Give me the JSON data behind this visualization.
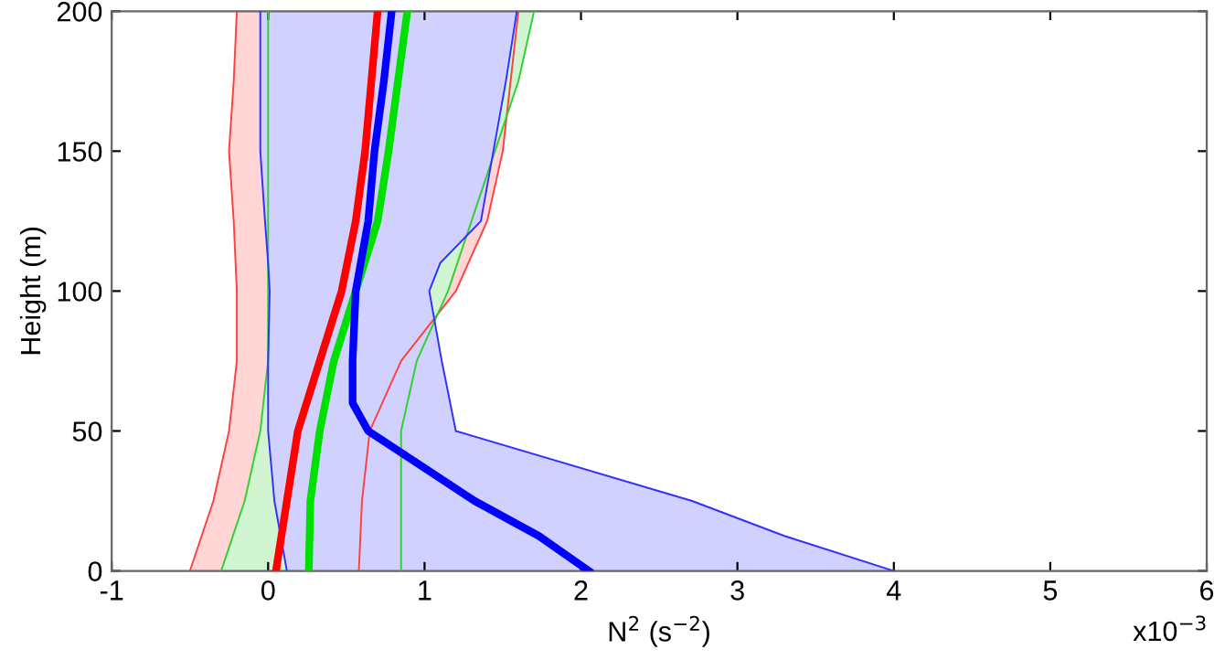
{
  "chart_data": {
    "type": "line",
    "xlabel": "N$^{2}$ (s$^{−2}$)",
    "ylabel": "Height (m)",
    "annotations": [
      "x10$^{−3}$"
    ],
    "xlim": [
      -1,
      6
    ],
    "xticks": [
      -1,
      0,
      1,
      2,
      3,
      4,
      5,
      6
    ],
    "ylim": [
      0,
      200
    ],
    "yticks": [
      0,
      50,
      100,
      150,
      200
    ],
    "grid": false,
    "line_style": "solid",
    "marker": "none",
    "series": [
      {
        "color": "#ff4040",
        "x": [
          -0.5,
          -0.35,
          -0.25,
          -0.2,
          -0.2,
          -0.22,
          -0.25,
          -0.22,
          -0.2
        ],
        "values": [
          0,
          25,
          50,
          75,
          100,
          125,
          150,
          175,
          200
        ]
      },
      {
        "color": "#ff4040",
        "x": [
          0.58,
          0.6,
          0.65,
          0.85,
          1.2,
          1.4,
          1.5,
          1.55,
          1.6
        ],
        "values": [
          0,
          25,
          50,
          75,
          100,
          125,
          150,
          175,
          200
        ]
      },
      {
        "color": "#30d030",
        "x": [
          -0.3,
          -0.15,
          -0.05,
          0.0,
          0.0,
          0.0,
          0.0,
          0.0,
          0.0
        ],
        "values": [
          0,
          25,
          50,
          75,
          100,
          125,
          150,
          175,
          200
        ]
      },
      {
        "color": "#30d030",
        "x": [
          0.85,
          0.85,
          0.85,
          0.95,
          1.15,
          1.3,
          1.45,
          1.6,
          1.7
        ],
        "values": [
          0,
          25,
          50,
          75,
          100,
          125,
          150,
          175,
          200
        ]
      },
      {
        "color": "#3030ff",
        "x": [
          0.12,
          0.08,
          0.04,
          0.0,
          0.0,
          0.01,
          0.0,
          -0.02,
          -0.05,
          -0.05,
          -0.05
        ],
        "values": [
          0,
          12.5,
          25,
          50,
          75,
          100,
          110,
          125,
          150,
          175,
          200
        ]
      },
      {
        "color": "#3030ff",
        "x": [
          4.0,
          3.3,
          2.71,
          1.2,
          1.11,
          1.03,
          1.1,
          1.36,
          1.44,
          1.52,
          1.59
        ],
        "values": [
          0,
          12.5,
          25,
          50,
          75,
          100,
          110,
          125,
          150,
          175,
          200
        ]
      },
      {
        "color": "#ff0000",
        "x": [
          0.05,
          0.12,
          0.19,
          0.33,
          0.47,
          0.56,
          0.62,
          0.66,
          0.7
        ],
        "values": [
          0,
          25,
          50,
          75,
          100,
          125,
          150,
          175,
          200
        ]
      },
      {
        "color": "#00e000",
        "x": [
          0.26,
          0.27,
          0.33,
          0.42,
          0.56,
          0.7,
          0.77,
          0.83,
          0.89
        ],
        "values": [
          0,
          25,
          50,
          75,
          100,
          125,
          150,
          175,
          200
        ]
      },
      {
        "color": "#0000ff",
        "x": [
          2.05,
          1.73,
          1.32,
          0.64,
          0.54,
          0.54,
          0.56,
          0.64,
          0.68,
          0.74,
          0.79
        ],
        "values": [
          0,
          12.5,
          25,
          50,
          60,
          75,
          100,
          125,
          150,
          175,
          200
        ]
      }
    ]
  }
}
